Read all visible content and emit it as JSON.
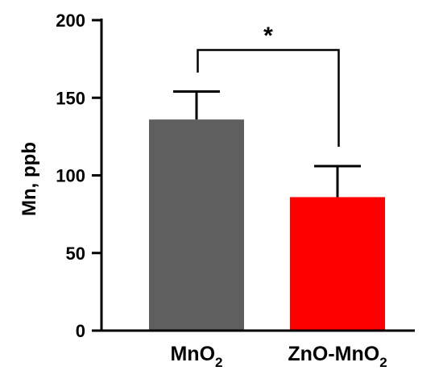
{
  "chart_data": {
    "type": "bar",
    "ylabel": "Mn, ppb",
    "ylim": [
      0,
      200
    ],
    "yticks": [
      0,
      50,
      100,
      150,
      200
    ],
    "categories": [
      {
        "main": "MnO",
        "sub": "2"
      },
      {
        "main": "ZnO-MnO",
        "sub": "2"
      }
    ],
    "values": [
      136,
      86
    ],
    "error_upper": [
      18,
      20
    ],
    "bar_colors": [
      "#5f5f5f",
      "#ff0000"
    ],
    "significance": {
      "between": [
        0,
        1
      ],
      "label": "*"
    }
  }
}
